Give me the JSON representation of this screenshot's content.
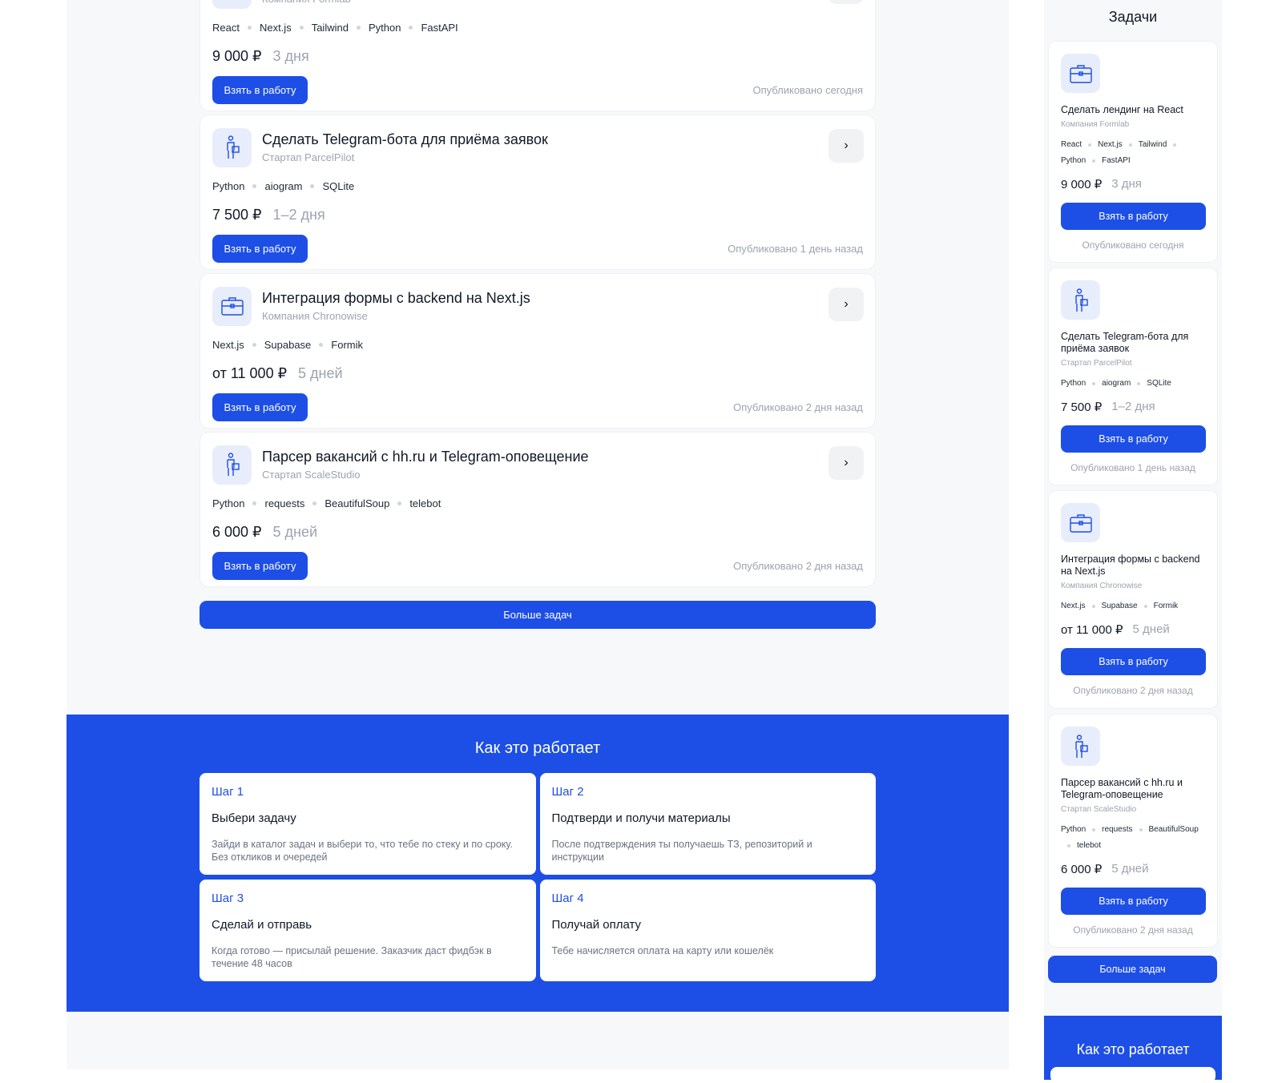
{
  "tasks": [
    {
      "title": "Сделать лендинг на React",
      "company": "Компания Formlab",
      "icon": "briefcase-icon",
      "tags": [
        "React",
        "Next.js",
        "Tailwind",
        "Python",
        "FastAPI"
      ],
      "price": "9 000 ₽",
      "duration": "3 дня",
      "published": "Опубликовано сегодня"
    },
    {
      "title": "Сделать Telegram-бота для приёма заявок",
      "company": "Стартап ParcelPilot",
      "icon": "person-with-bag-icon",
      "tags": [
        "Python",
        "aiogram",
        "SQLite"
      ],
      "price": "7 500 ₽",
      "duration": "1–2 дня",
      "published": "Опубликовано 1 день назад"
    },
    {
      "title": "Интеграция формы с backend на Next.js",
      "company": "Компания Chronowise",
      "icon": "briefcase-icon",
      "tags": [
        "Next.js",
        "Supabase",
        "Formik"
      ],
      "price": "от 11 000 ₽",
      "duration": "5 дней",
      "published": "Опубликовано 2 дня назад"
    },
    {
      "title": "Парсер вакансий с hh.ru и Telegram-оповещение",
      "company": "Стартап ScaleStudio",
      "icon": "person-with-bag-icon",
      "tags": [
        "Python",
        "requests",
        "BeautifulSoup",
        "telebot"
      ],
      "price": "6 000 ₽",
      "duration": "5 дней",
      "published": "Опубликовано 2 дня назад"
    }
  ],
  "take_label": "Взять в работу",
  "more_label": "Больше задач",
  "sidebar_title": "Задачи",
  "how": {
    "title": "Как это работает",
    "steps": [
      {
        "num": "Шаг 1",
        "title": "Выбери задачу",
        "text": "Зайди в каталог задач и выбери то, что тебе по стеку и по сроку. Без откликов и очередей"
      },
      {
        "num": "Шаг 2",
        "title": "Подтверди и получи материалы",
        "text": "После подтверждения ты получаешь ТЗ, репозиторий и инструкции"
      },
      {
        "num": "Шаг 3",
        "title": "Сделай и отправь",
        "text": "Когда готово — присылай решение. Заказчик даст фидбэк в течение 48 часов"
      },
      {
        "num": "Шаг 4",
        "title": "Получай оплату",
        "text": "Тебе начисляется оплата на карту или кошелёк"
      }
    ]
  },
  "colors": {
    "accent": "#1d4fe6",
    "page_bg": "#f7f8fa",
    "icon_bg": "#e8edfc"
  }
}
